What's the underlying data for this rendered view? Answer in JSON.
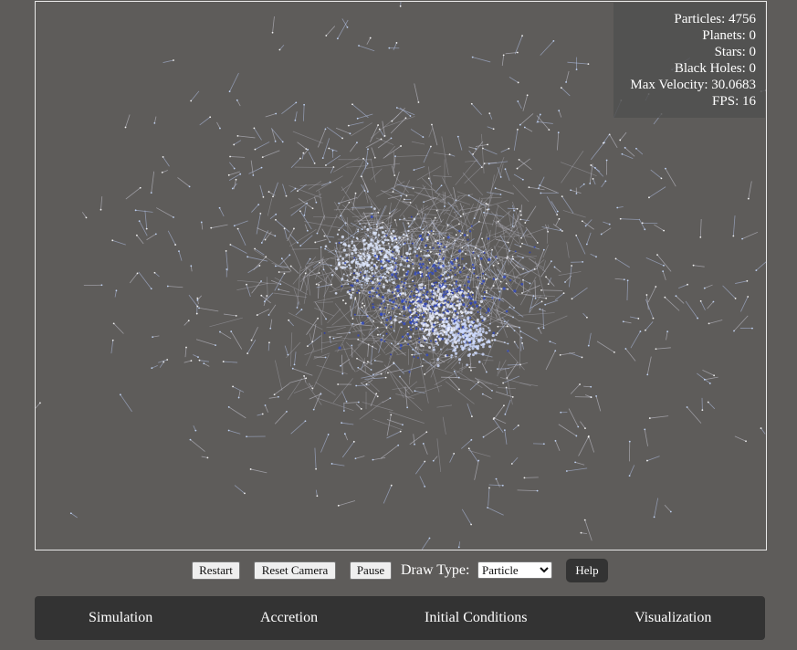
{
  "stats": {
    "particles": "Particles: 4756",
    "planets": "Planets: 0",
    "stars": "Stars: 0",
    "black_holes": "Black Holes: 0",
    "max_velocity": "Max Velocity: 30.0683",
    "fps": "FPS: 16"
  },
  "controls": {
    "restart_label": "Restart",
    "reset_camera_label": "Reset Camera",
    "pause_label": "Pause",
    "draw_type_label": "Draw Type:",
    "draw_type_selected": "Particle",
    "help_label": "Help"
  },
  "tabs": [
    {
      "label": "Simulation"
    },
    {
      "label": "Accretion"
    },
    {
      "label": "Initial Conditions"
    },
    {
      "label": "Visualization"
    }
  ],
  "colors": {
    "background": "#5e5c5a",
    "panel": "#333333",
    "particle_blue": "#3a4fc4",
    "particle_light": "#a8c4ff",
    "trail": "#c8c8d8"
  }
}
